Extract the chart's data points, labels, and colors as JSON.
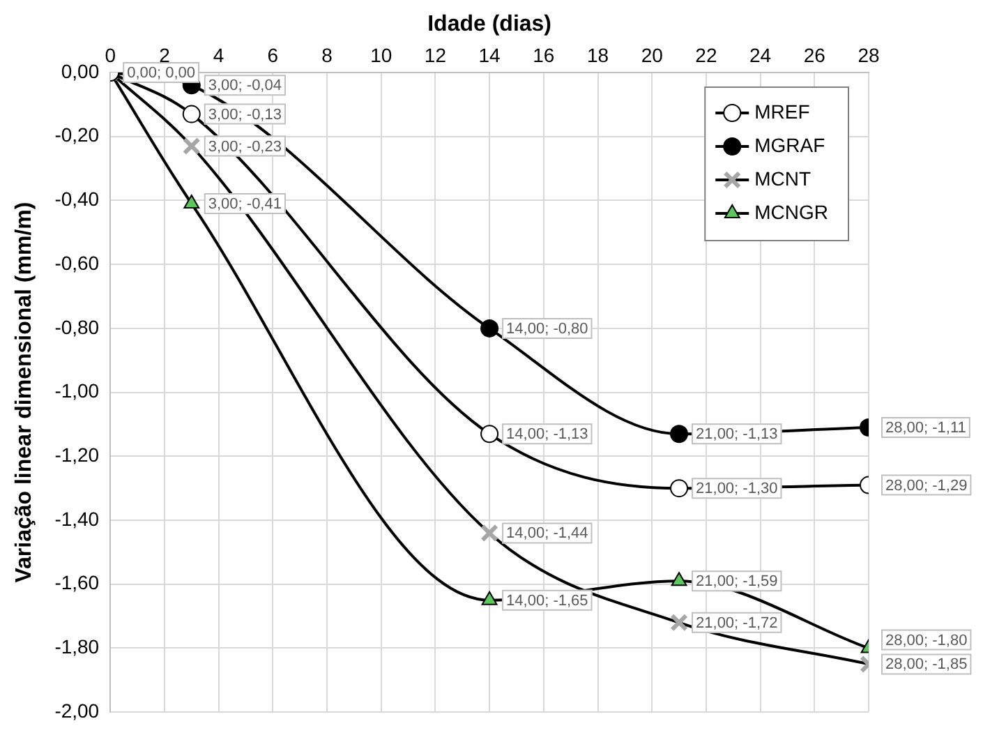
{
  "chart_data": {
    "type": "line",
    "xlabel": "Idade (dias)",
    "ylabel": "Variação linear dimensional (mm/m)",
    "x": [
      0,
      3,
      14,
      21,
      28
    ],
    "xlim": [
      0,
      28
    ],
    "xticks": [
      0,
      2,
      4,
      6,
      8,
      10,
      12,
      14,
      16,
      18,
      20,
      22,
      24,
      26,
      28
    ],
    "ylim": [
      -2,
      0
    ],
    "yticks": [
      {
        "value": 0,
        "label": "0,00"
      },
      {
        "value": -0.2,
        "label": "-0,20"
      },
      {
        "value": -0.4,
        "label": "-0,40"
      },
      {
        "value": -0.6,
        "label": "-0,60"
      },
      {
        "value": -0.8,
        "label": "-0,80"
      },
      {
        "value": -1,
        "label": "-1,00"
      },
      {
        "value": -1.2,
        "label": "-1,20"
      },
      {
        "value": -1.4,
        "label": "-1,40"
      },
      {
        "value": -1.6,
        "label": "-1,60"
      },
      {
        "value": -1.8,
        "label": "-1,80"
      },
      {
        "value": -2,
        "label": "-2,00"
      }
    ],
    "grid": true,
    "legend": "top right",
    "line_style": "solid",
    "series": [
      {
        "name": "MREF",
        "color": "#ffffff",
        "marker": "circle",
        "values": [
          0,
          -0.13,
          -1.13,
          -1.3,
          -1.29
        ],
        "value_labels": [
          "0,00; 0,00",
          "3,00; -0,13",
          "14,00; -1,13",
          "21,00; -1,30",
          "28,00; -1,29"
        ]
      },
      {
        "name": "MGRAF",
        "color": "#000000",
        "marker": "circle",
        "values": [
          0,
          -0.04,
          -0.8,
          -1.13,
          -1.11
        ],
        "value_labels": [
          null,
          "3,00; -0,04",
          "14,00; -0,80",
          "21,00; -1,13",
          "28,00; -1,11"
        ]
      },
      {
        "name": "MCNT",
        "color": "#a6a6a6",
        "marker": "cross",
        "values": [
          0,
          -0.23,
          -1.44,
          -1.72,
          -1.85
        ],
        "value_labels": [
          null,
          "3,00; -0,23",
          "14,00; -1,44",
          "21,00; -1,72",
          "28,00; -1,85"
        ]
      },
      {
        "name": "MCNGR",
        "color": "#5cc85c",
        "marker": "triangle",
        "values": [
          0,
          -0.41,
          -1.65,
          -1.59,
          -1.8
        ],
        "value_labels": [
          null,
          "3,00; -0,41",
          "14,00; -1,65",
          "21,00; -1,59",
          "28,00; -1,80"
        ]
      }
    ]
  }
}
